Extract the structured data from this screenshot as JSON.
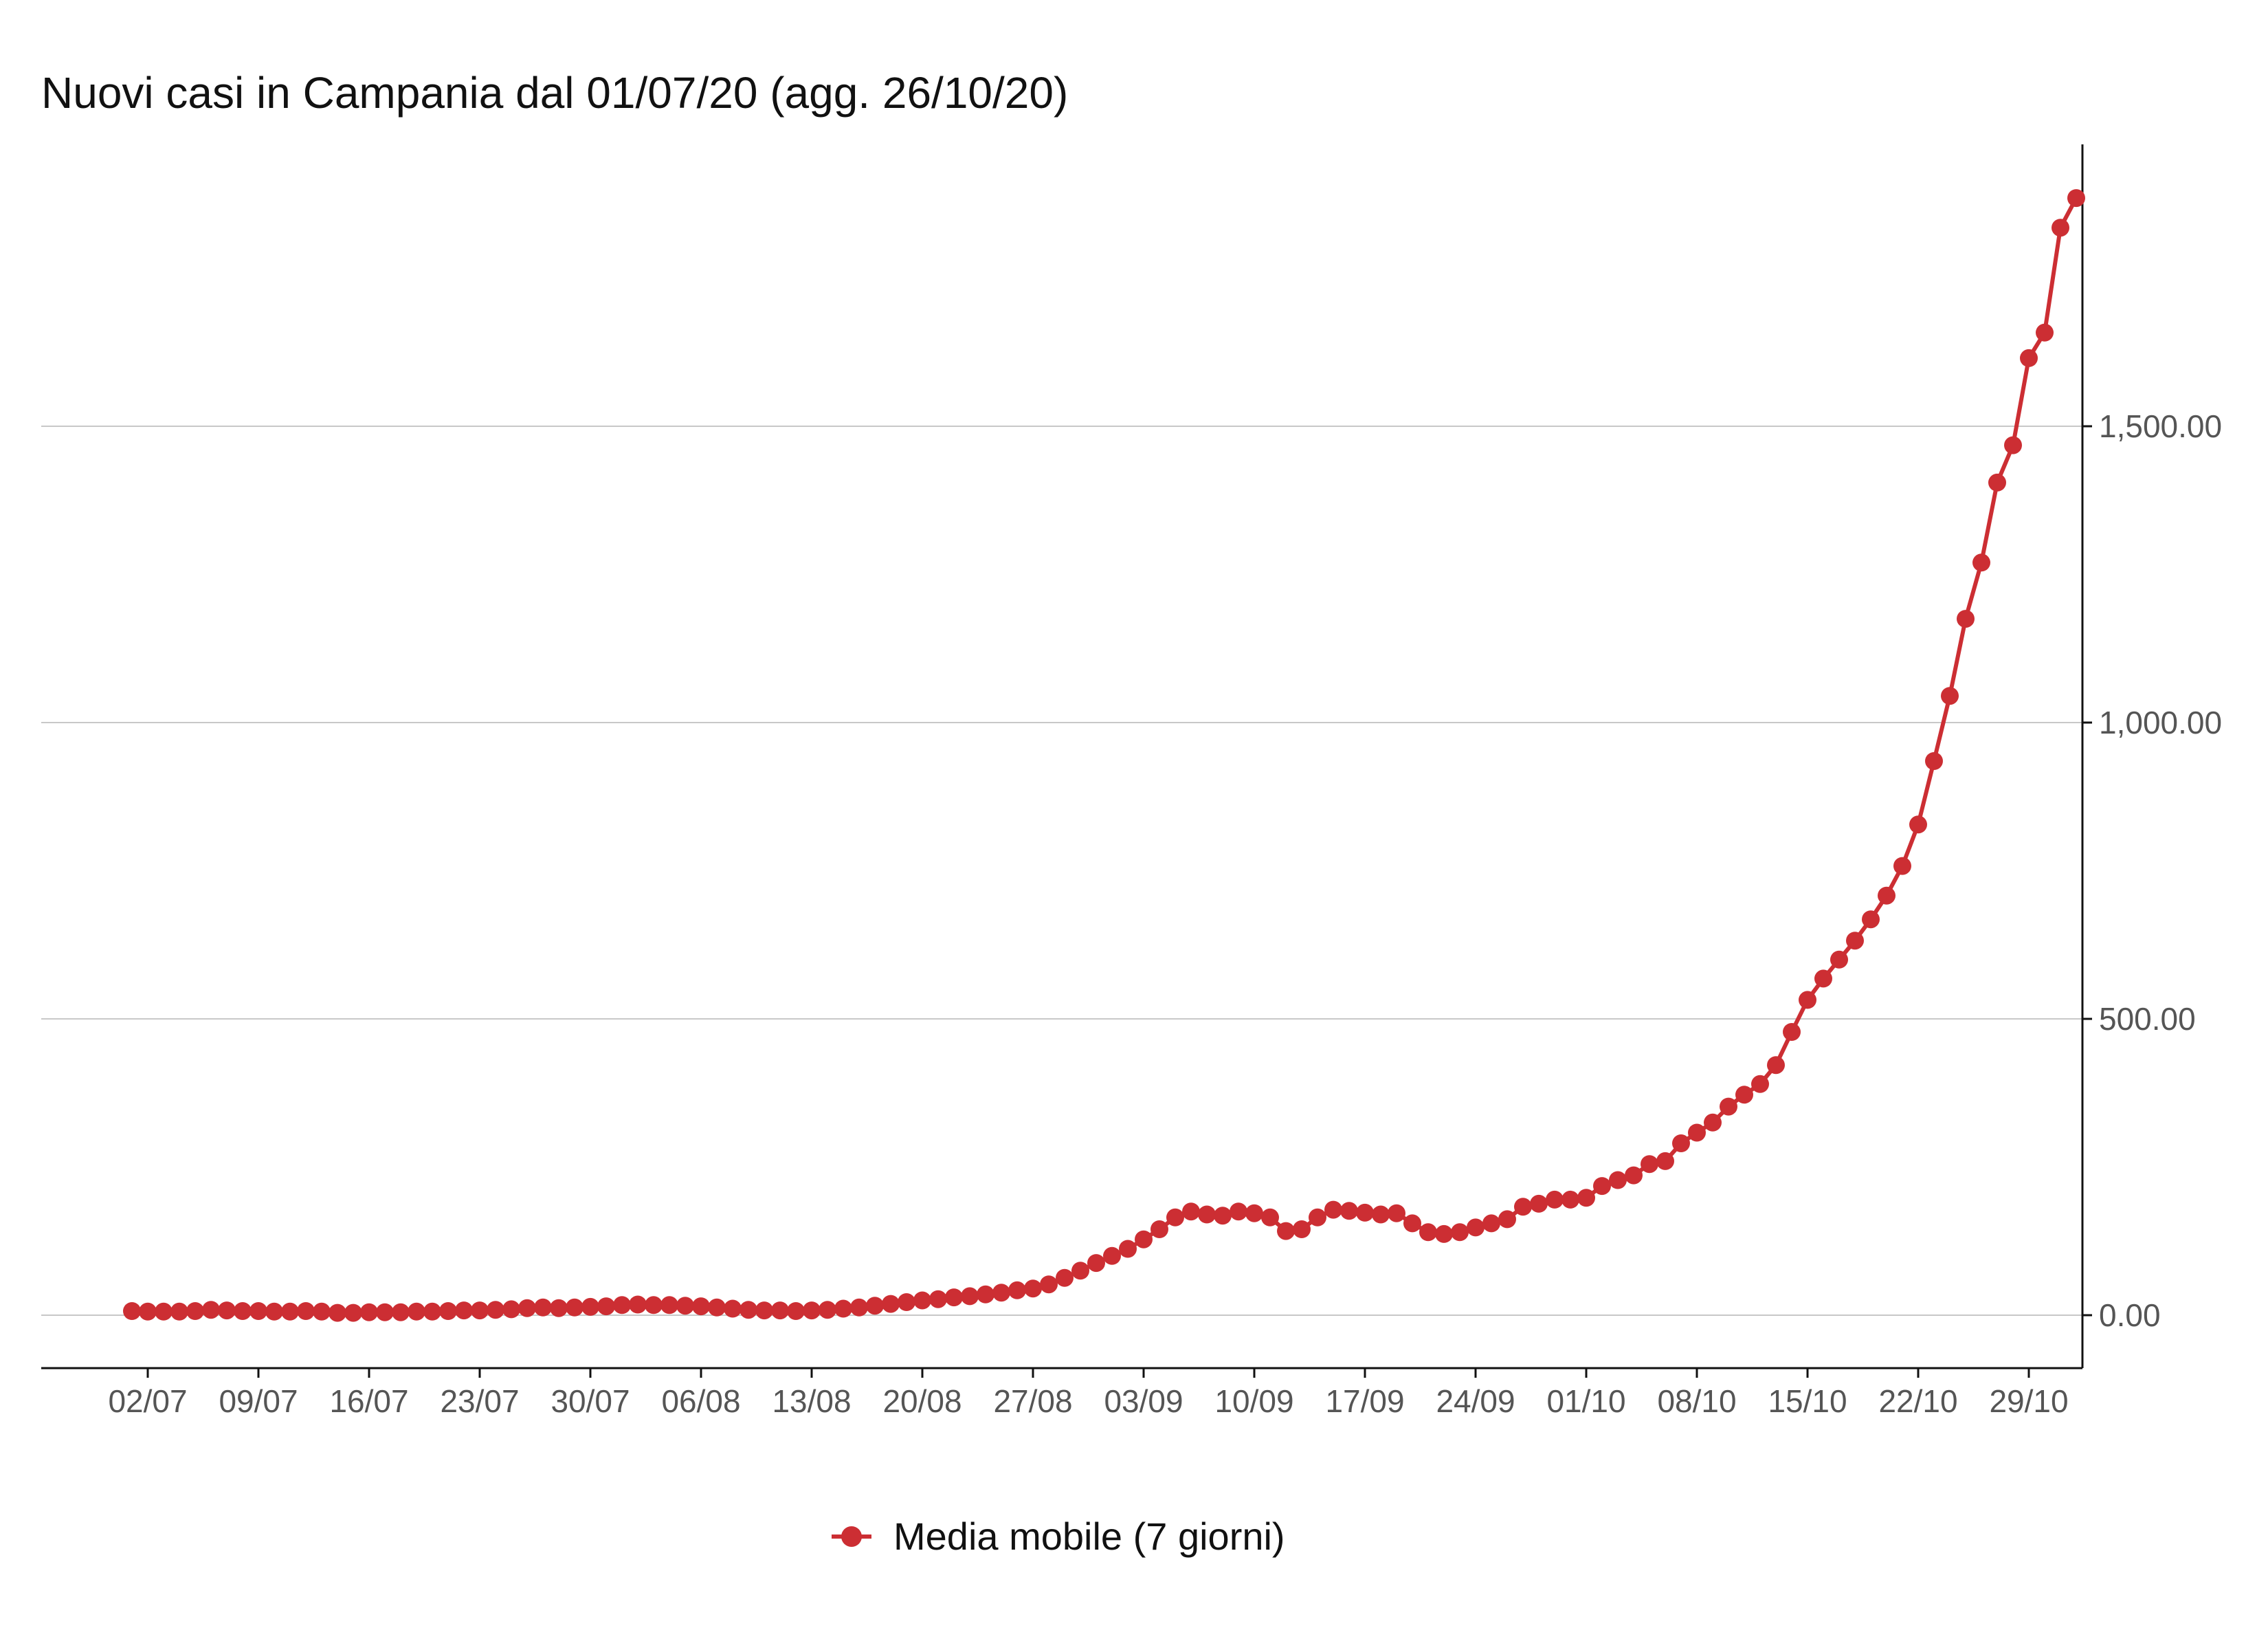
{
  "chart_data": {
    "type": "line",
    "title": "Nuovi casi in Campania dal 01/07/20 (agg. 26/10/20)",
    "xlabel": "",
    "ylabel": "",
    "x_start": "01/07",
    "x_ticks": [
      "02/07",
      "09/07",
      "16/07",
      "23/07",
      "30/07",
      "06/08",
      "13/08",
      "20/08",
      "27/08",
      "03/09",
      "10/09",
      "17/09",
      "24/09",
      "01/10",
      "08/10",
      "15/10",
      "22/10",
      "29/10"
    ],
    "y_ticks": [
      "0.00",
      "500.00",
      "1,000.00",
      "1,500.00"
    ],
    "y_tick_values": [
      0,
      500,
      1000,
      1500
    ],
    "ylim": [
      -88,
      1985
    ],
    "grid": "horizontal",
    "y_axis_side": "right",
    "legend_position": "bottom",
    "color": "#cc2e33",
    "series": [
      {
        "name": "Media mobile (7 giorni)",
        "values": [
          7,
          6,
          6,
          6,
          7,
          9,
          8,
          7,
          7,
          6,
          6,
          7,
          6,
          4,
          4,
          5,
          5,
          5,
          6,
          6,
          7,
          8,
          8,
          9,
          10,
          12,
          13,
          12,
          13,
          14,
          15,
          17,
          18,
          17,
          17,
          16,
          15,
          13,
          11,
          9,
          8,
          8,
          7,
          8,
          9,
          11,
          13,
          16,
          19,
          22,
          25,
          27,
          30,
          32,
          35,
          38,
          42,
          45,
          52,
          63,
          75,
          88,
          100,
          112,
          128,
          145,
          165,
          175,
          170,
          168,
          175,
          172,
          165,
          142,
          145,
          165,
          178,
          176,
          173,
          170,
          172,
          155,
          140,
          137,
          140,
          148,
          155,
          162,
          183,
          188,
          195,
          195,
          198,
          218,
          228,
          236,
          255,
          260,
          290,
          308,
          325,
          352,
          372,
          390,
          422,
          478,
          532,
          568,
          600,
          632,
          668,
          708,
          758,
          828,
          935,
          1045,
          1175,
          1270,
          1405,
          1468,
          1615,
          1658,
          1835,
          1885
        ]
      }
    ]
  }
}
